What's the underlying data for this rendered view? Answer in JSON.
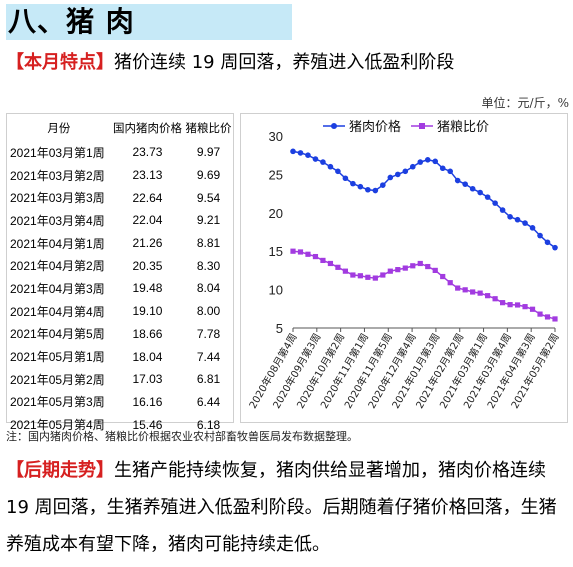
{
  "section": {
    "title": "八、猪    肉"
  },
  "feature": {
    "tag": "【本月特点】",
    "text": "猪价连续 19 周回落，养殖进入低盈利阶段"
  },
  "unit": "单位：元/斤，%",
  "table": {
    "headers": [
      "月份",
      "国内猪肉价格",
      "猪粮比价"
    ],
    "rows": [
      [
        "2021年03月第1周",
        "23.73",
        "9.97"
      ],
      [
        "2021年03月第2周",
        "23.13",
        "9.69"
      ],
      [
        "2021年03月第3周",
        "22.64",
        "9.54"
      ],
      [
        "2021年03月第4周",
        "22.04",
        "9.21"
      ],
      [
        "2021年04月第1周",
        "21.26",
        "8.81"
      ],
      [
        "2021年04月第2周",
        "20.35",
        "8.30"
      ],
      [
        "2021年04月第3周",
        "19.48",
        "8.04"
      ],
      [
        "2021年04月第4周",
        "19.10",
        "8.00"
      ],
      [
        "2021年04月第5周",
        "18.66",
        "7.78"
      ],
      [
        "2021年05月第1周",
        "18.04",
        "7.44"
      ],
      [
        "2021年05月第2周",
        "17.03",
        "6.81"
      ],
      [
        "2021年05月第3周",
        "16.16",
        "6.44"
      ],
      [
        "2021年05月第4周",
        "15.46",
        "6.18"
      ]
    ]
  },
  "chart_data": {
    "type": "line",
    "ylim": [
      5,
      30
    ],
    "yticks": [
      "5",
      "10",
      "15",
      "20",
      "25",
      "30"
    ],
    "legend_position": "top",
    "x_tick_labels": [
      "2020年08月第4周",
      "2020年09月第3周",
      "2020年10月第2周",
      "2020年11月第1周",
      "2020年11月第5周",
      "2020年12月第4周",
      "2021年01月第3周",
      "2021年02月第2周",
      "2021年03月第1周",
      "2021年03月第4周",
      "2021年04月第3周",
      "2021年05月第2周"
    ],
    "series": [
      {
        "name": "猪肉价格",
        "color": "#1c3fe0",
        "marker": "circle",
        "values": [
          28.0,
          27.8,
          27.5,
          27.0,
          26.6,
          26.0,
          25.4,
          24.5,
          23.8,
          23.4,
          23.0,
          22.9,
          23.6,
          24.6,
          25.0,
          25.4,
          26.0,
          26.6,
          26.9,
          26.7,
          25.8,
          25.4,
          24.2,
          23.73,
          23.13,
          22.64,
          22.04,
          21.26,
          20.35,
          19.48,
          19.1,
          18.66,
          18.04,
          17.03,
          16.16,
          15.46
        ]
      },
      {
        "name": "猪粮比价",
        "color": "#a23be0",
        "marker": "square",
        "values": [
          15.0,
          14.9,
          14.6,
          14.3,
          13.8,
          13.4,
          12.9,
          12.4,
          11.9,
          11.8,
          11.6,
          11.5,
          11.9,
          12.4,
          12.6,
          12.8,
          13.1,
          13.4,
          13.0,
          12.5,
          11.7,
          10.9,
          10.2,
          9.97,
          9.69,
          9.54,
          9.21,
          8.81,
          8.3,
          8.04,
          8.0,
          7.78,
          7.44,
          6.81,
          6.44,
          6.18
        ]
      }
    ]
  },
  "note": "注：国内猪肉价格、猪粮比价根据农业农村部畜牧兽医局发布数据整理。",
  "outlook": {
    "tag": "【后期走势】",
    "text": "生猪产能持续恢复，猪肉供给显著增加，猪肉价格连续 19 周回落，生猪养殖进入低盈利阶段。后期随着仔猪价格回落，生猪养殖成本有望下降，猪肉可能持续走低。"
  }
}
